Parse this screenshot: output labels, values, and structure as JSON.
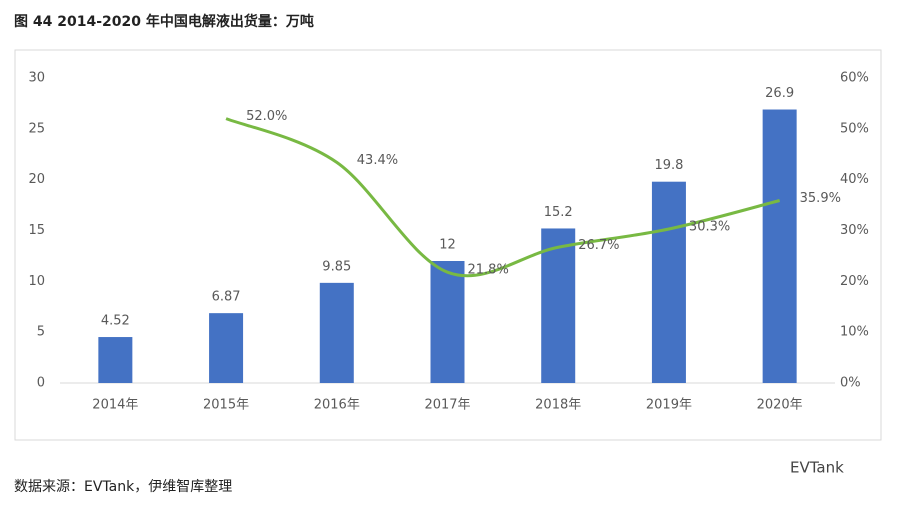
{
  "chart_data": {
    "type": "bar-line",
    "title": "图 44 2014-2020 年中国电解液出货量：万吨",
    "source": "数据来源：EVTank，伊维智库整理",
    "brand": "EVTank",
    "categories": [
      "2014年",
      "2015年",
      "2016年",
      "2017年",
      "2018年",
      "2019年",
      "2020年"
    ],
    "series": [
      {
        "type": "bar",
        "color": "#4472c4",
        "values": [
          4.52,
          6.87,
          9.85,
          12,
          15.2,
          19.8,
          26.9
        ]
      },
      {
        "type": "line",
        "axis": "y2",
        "color": "#78b943",
        "values": [
          null,
          52.0,
          43.4,
          21.8,
          26.7,
          30.3,
          35.9
        ],
        "value_labels": [
          null,
          "52.0%",
          "43.4%",
          "21.8%",
          "26.7%",
          "30.3%",
          "35.9%"
        ]
      }
    ],
    "ylim": [
      0,
      30
    ],
    "yticks": [
      0,
      5,
      10,
      15,
      20,
      25,
      30
    ],
    "y2lim": [
      0,
      60
    ],
    "y2ticks": [
      {
        "value": 0,
        "label": "0%"
      },
      {
        "value": 10,
        "label": "10%"
      },
      {
        "value": 20,
        "label": "20%"
      },
      {
        "value": 30,
        "label": "30%"
      },
      {
        "value": 40,
        "label": "40%"
      },
      {
        "value": 50,
        "label": "50%"
      },
      {
        "value": 60,
        "label": "60%"
      }
    ]
  }
}
